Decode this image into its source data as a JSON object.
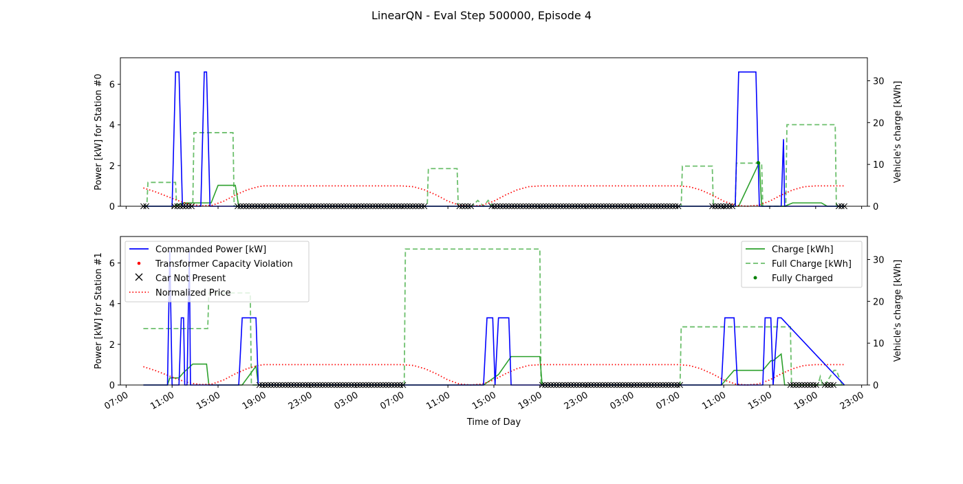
{
  "title": "LinearQN - Eval Step 500000, Episode 4",
  "colors": {
    "commanded": "#0000ff",
    "violation": "#ff0000",
    "car_absent": "#000000",
    "price": "#ff0000",
    "charge": "#2ca02c",
    "full_charge": "#6cbf6c",
    "fully_charged": "#008000"
  },
  "legend_left": {
    "commanded": "Commanded Power [kW]",
    "violation": "Transformer Capacity Violation",
    "car_absent": "Car Not Present",
    "price": "Normalized Price"
  },
  "legend_right": {
    "charge": "Charge [kWh]",
    "full_charge": "Full Charge [kWh]",
    "fully_charged": "Fully Charged"
  },
  "chart_data": [
    {
      "type": "line",
      "title": "",
      "xlabel": "",
      "ylabel": "Power [kW] for Station #0",
      "y2label": "Vehicle's charge [kWh]",
      "x_unit": "hours from 07:00 on day 1",
      "xlim": [
        -0.5,
        64.5
      ],
      "ylim": [
        0,
        7.3
      ],
      "y2lim": [
        0,
        35.5
      ],
      "yticks": [
        0,
        2,
        4,
        6
      ],
      "y2ticks": [
        0,
        10,
        20,
        30
      ],
      "xticks": [
        0,
        4,
        8,
        12,
        16,
        20,
        24,
        28,
        32,
        36,
        40,
        44,
        48,
        52,
        56,
        60,
        64
      ],
      "xticklabels": [
        "07:00",
        "11:00",
        "15:00",
        "19:00",
        "23:00",
        "03:00",
        "07:00",
        "11:00",
        "15:00",
        "19:00",
        "23:00",
        "03:00",
        "07:00",
        "11:00",
        "15:00",
        "19:00",
        "23:00"
      ],
      "show_xticklabels": false,
      "grid": false,
      "commanded_power": {
        "x": [
          1.5,
          4.0,
          4.3,
          4.4,
          4.5,
          4.6,
          4.9,
          5.0,
          6.5,
          6.8,
          6.9,
          7.0,
          7.3,
          7.4,
          8.5,
          53.0,
          53.3,
          54.8,
          55.1,
          57.0,
          57.2,
          57.3,
          57.4,
          62.5
        ],
        "y": [
          0,
          0,
          6.6,
          6.6,
          6.6,
          6.6,
          0,
          0,
          0,
          6.6,
          6.6,
          6.6,
          0,
          0,
          0,
          0,
          6.6,
          6.6,
          0,
          0,
          3.3,
          0,
          0,
          0
        ]
      },
      "price": {
        "x": [
          1.5,
          2.5,
          3.5,
          4.5,
          5.5,
          6.5,
          7.5,
          8.5,
          9.5,
          10.5,
          11.5,
          12,
          24,
          25,
          26,
          27,
          28,
          29,
          30,
          31,
          32,
          33,
          34,
          35,
          36,
          48,
          49,
          50,
          51,
          52,
          53,
          54,
          55,
          56,
          57,
          58,
          59,
          60,
          61,
          62,
          62.5
        ],
        "y": [
          0.9,
          0.72,
          0.5,
          0.28,
          0.1,
          0.02,
          0.05,
          0.25,
          0.55,
          0.8,
          0.96,
          1.0,
          1.0,
          0.96,
          0.8,
          0.55,
          0.25,
          0.05,
          0.0,
          0.05,
          0.25,
          0.55,
          0.8,
          0.96,
          1.0,
          1.0,
          0.96,
          0.8,
          0.55,
          0.25,
          0.05,
          0.0,
          0.05,
          0.25,
          0.55,
          0.8,
          0.96,
          1.0,
          1.0,
          1.0,
          1.0
        ]
      },
      "charge": {
        "x": [
          1.5,
          4.3,
          4.9,
          6.8,
          7.4,
          8.0,
          9.5,
          9.8,
          53.3,
          55.1,
          55.3,
          57.3,
          58.0,
          60.5,
          61.0,
          62.5
        ],
        "y": [
          0,
          0,
          0.8,
          0.8,
          0.8,
          5.0,
          5.0,
          0,
          0,
          10.5,
          0,
          0,
          0.8,
          0.8,
          0,
          0
        ]
      },
      "full_charge": {
        "x": [
          1.5,
          1.8,
          1.9,
          4.3,
          4.4,
          5.8,
          5.9,
          9.3,
          9.4,
          26.2,
          26.3,
          28.8,
          28.9,
          30.1,
          30.6,
          31.1,
          31.5,
          31.9,
          32.1,
          48.3,
          48.4,
          51.0,
          51.1,
          53.0,
          53.1,
          55.3,
          55.4,
          57.4,
          57.5,
          61.7,
          61.8,
          62.5
        ],
        "y": [
          0,
          0,
          5.7,
          5.7,
          0,
          0,
          17.6,
          17.6,
          0,
          0,
          9.0,
          9.0,
          0,
          0,
          1.4,
          0,
          1.4,
          0,
          0,
          0,
          9.6,
          9.6,
          0,
          0,
          10.3,
          10.3,
          0,
          0,
          19.5,
          19.5,
          0,
          0
        ]
      },
      "fully_charged": {
        "x": [
          55.0
        ],
        "y": [
          10.4
        ]
      },
      "car_not_present": {
        "ranges": [
          [
            1.5,
            1.8
          ],
          [
            4.2,
            5.8
          ],
          [
            9.7,
            26.1
          ],
          [
            29.0,
            30.0
          ],
          [
            31.8,
            48.2
          ],
          [
            51.0,
            52.9
          ],
          [
            62.0,
            62.5
          ]
        ],
        "step": 0.25
      }
    },
    {
      "type": "line",
      "title": "",
      "xlabel": "Time of Day",
      "ylabel": "Power [kW] for Station #1",
      "y2label": "Vehicle's charge [kWh]",
      "x_unit": "hours from 07:00 on day 1",
      "xlim": [
        -0.5,
        64.5
      ],
      "ylim": [
        0,
        7.3
      ],
      "y2lim": [
        0,
        35.5
      ],
      "yticks": [
        0,
        2,
        4,
        6
      ],
      "y2ticks": [
        0,
        10,
        20,
        30
      ],
      "xticks": [
        0,
        4,
        8,
        12,
        16,
        20,
        24,
        28,
        32,
        36,
        40,
        44,
        48,
        52,
        56,
        60,
        64
      ],
      "xticklabels": [
        "07:00",
        "11:00",
        "15:00",
        "19:00",
        "23:00",
        "03:00",
        "07:00",
        "11:00",
        "15:00",
        "19:00",
        "23:00",
        "03:00",
        "07:00",
        "11:00",
        "15:00",
        "19:00",
        "23:00"
      ],
      "show_xticklabels": true,
      "legend": [
        "top-left",
        "top-right"
      ],
      "grid": false,
      "commanded_power": {
        "x": [
          1.5,
          3.6,
          3.8,
          4.0,
          4.6,
          4.8,
          5.0,
          5.1,
          5.3,
          5.5,
          5.6,
          5.8,
          6.0,
          9.8,
          10.1,
          11.3,
          11.5,
          31.1,
          31.4,
          31.9,
          32.1,
          32.4,
          33.3,
          33.5,
          51.8,
          52.1,
          52.9,
          53.2,
          55.4,
          55.6,
          56.1,
          56.3,
          56.7,
          57.0,
          62.5
        ],
        "y": [
          0,
          0,
          6.6,
          0,
          0,
          3.3,
          3.3,
          0,
          0,
          6.6,
          0,
          0,
          0,
          0,
          3.3,
          3.3,
          0,
          0,
          3.3,
          3.3,
          0,
          3.3,
          3.3,
          0,
          0,
          3.3,
          3.3,
          0,
          0,
          3.3,
          3.3,
          0,
          3.3,
          3.3,
          0
        ]
      },
      "price": {
        "x": [
          1.5,
          2.5,
          3.5,
          4.5,
          5.5,
          6.5,
          7.5,
          8.5,
          9.5,
          10.5,
          11.5,
          12,
          24,
          25,
          26,
          27,
          28,
          29,
          30,
          31,
          32,
          33,
          34,
          35,
          36,
          48,
          49,
          50,
          51,
          52,
          53,
          54,
          55,
          56,
          57,
          58,
          59,
          60,
          61,
          62,
          62.5
        ],
        "y": [
          0.9,
          0.72,
          0.5,
          0.28,
          0.1,
          0.02,
          0.05,
          0.25,
          0.55,
          0.8,
          0.96,
          1.0,
          1.0,
          0.96,
          0.8,
          0.55,
          0.25,
          0.05,
          0.0,
          0.05,
          0.25,
          0.55,
          0.8,
          0.96,
          1.0,
          1.0,
          0.96,
          0.8,
          0.55,
          0.25,
          0.05,
          0.0,
          0.05,
          0.25,
          0.55,
          0.8,
          0.96,
          1.0,
          1.0,
          1.0,
          1.0
        ]
      },
      "charge": {
        "x": [
          1.5,
          3.6,
          3.8,
          4.0,
          4.6,
          5.0,
          5.8,
          7.0,
          7.2,
          10.1,
          11.3,
          11.5,
          31.1,
          32.4,
          33.5,
          36.0,
          36.2,
          51.8,
          52.9,
          55.4,
          56.1,
          56.3,
          57.0,
          57.3,
          62.5
        ],
        "y": [
          0,
          0,
          1.7,
          1.7,
          1.7,
          3.0,
          5.0,
          5.0,
          0,
          0,
          4.5,
          0,
          0,
          2.5,
          6.8,
          6.8,
          0,
          0,
          3.5,
          3.5,
          5.8,
          5.8,
          7.4,
          0,
          0
        ]
      },
      "full_charge": {
        "x": [
          1.5,
          7.1,
          7.2,
          10.8,
          10.9,
          24.2,
          24.3,
          36.0,
          36.1,
          48.2,
          48.3,
          57.8,
          57.9,
          60.2,
          60.4,
          60.6,
          60.8,
          61.6,
          61.8,
          62.3,
          62.5
        ],
        "y": [
          13.5,
          13.5,
          22.0,
          22.0,
          0,
          0,
          32.5,
          32.5,
          0,
          0,
          13.9,
          13.9,
          0,
          0,
          2.0,
          0,
          0,
          3.5,
          3.5,
          0,
          0
        ]
      },
      "fully_charged": {
        "x": [],
        "y": []
      },
      "car_not_present": {
        "ranges": [
          [
            11.6,
            24.2
          ],
          [
            36.2,
            48.2
          ],
          [
            57.8,
            60.2
          ],
          [
            60.8,
            61.6
          ]
        ],
        "step": 0.25
      }
    }
  ]
}
